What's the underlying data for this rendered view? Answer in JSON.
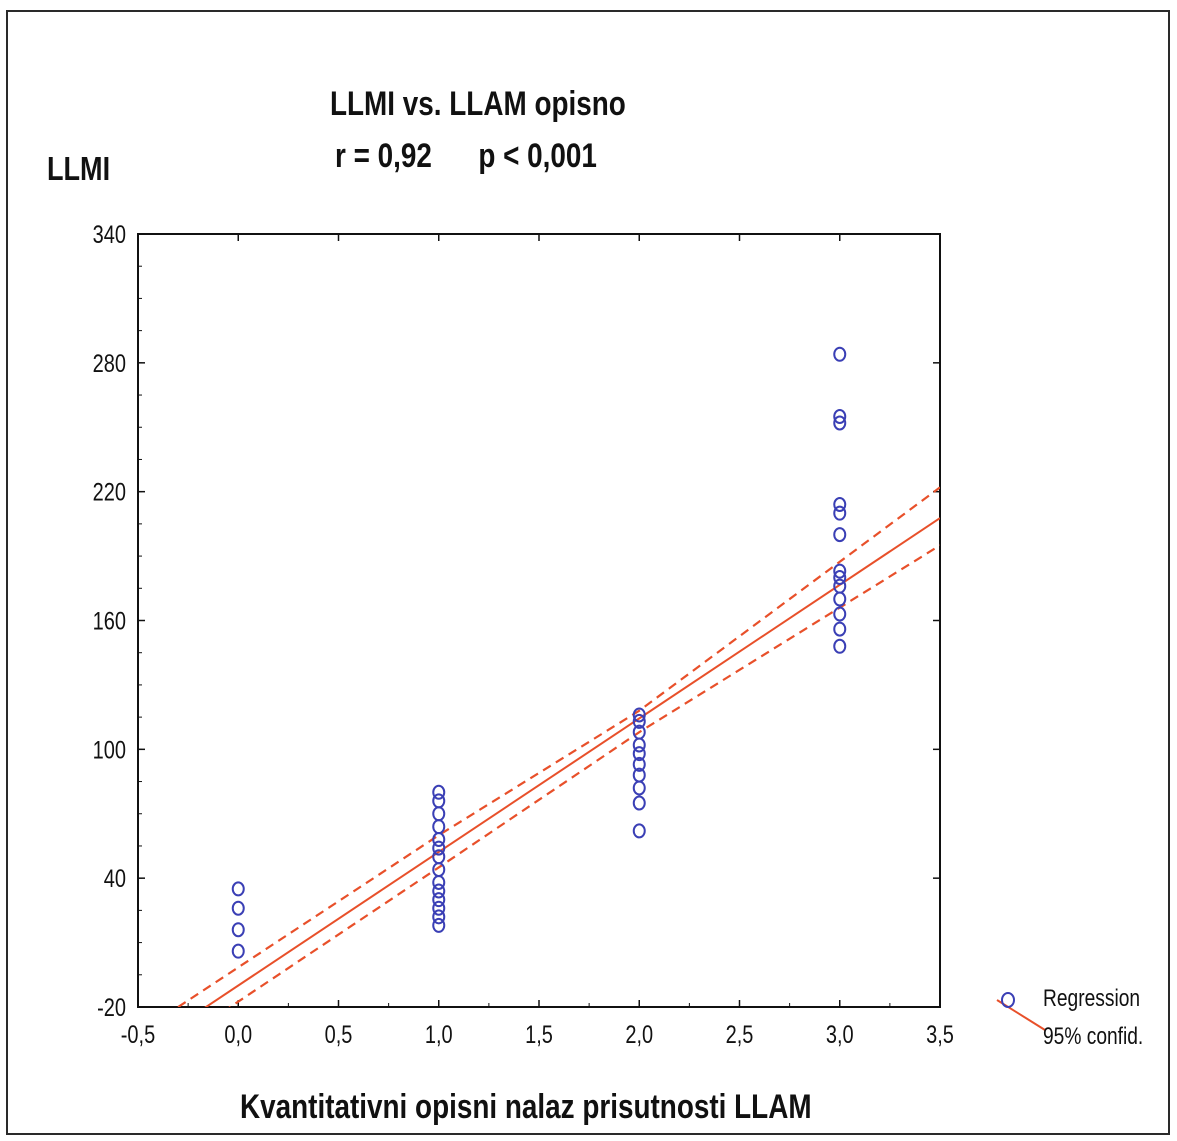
{
  "chart_data": {
    "type": "scatter",
    "title": "LLMI vs. LLAM opisno",
    "subtitle": "r = 0,92      p < 0,001",
    "xlabel": "Kvantitativni opisni nalaz prisutnosti LLAM",
    "ylabel": "LLMI",
    "xlim": [
      -0.5,
      3.5
    ],
    "ylim": [
      -20,
      340
    ],
    "x_ticks": [
      -0.5,
      0.0,
      0.5,
      1.0,
      1.5,
      2.0,
      2.5,
      3.0,
      3.5
    ],
    "x_tick_labels": [
      "-0,5",
      "0,0",
      "0,5",
      "1,0",
      "1,5",
      "2,0",
      "2,5",
      "3,0",
      "3,5"
    ],
    "y_ticks": [
      -20,
      40,
      100,
      160,
      220,
      280,
      340
    ],
    "y_tick_labels": [
      "-20",
      "40",
      "100",
      "160",
      "220",
      "280",
      "340"
    ],
    "grid": false,
    "legend_position": "right",
    "legend": [
      {
        "label": "Regression"
      },
      {
        "label": "95% confid."
      }
    ],
    "points": [
      {
        "x": 0,
        "y": 6
      },
      {
        "x": 0,
        "y": 16
      },
      {
        "x": 0,
        "y": 26
      },
      {
        "x": 0,
        "y": 35
      },
      {
        "x": 1,
        "y": 18
      },
      {
        "x": 1,
        "y": 22
      },
      {
        "x": 1,
        "y": 26
      },
      {
        "x": 1,
        "y": 30
      },
      {
        "x": 1,
        "y": 34
      },
      {
        "x": 1,
        "y": 38
      },
      {
        "x": 1,
        "y": 44
      },
      {
        "x": 1,
        "y": 50
      },
      {
        "x": 1,
        "y": 54
      },
      {
        "x": 1,
        "y": 58
      },
      {
        "x": 1,
        "y": 64
      },
      {
        "x": 1,
        "y": 70
      },
      {
        "x": 1,
        "y": 76
      },
      {
        "x": 1,
        "y": 80
      },
      {
        "x": 2,
        "y": 62
      },
      {
        "x": 2,
        "y": 75
      },
      {
        "x": 2,
        "y": 82
      },
      {
        "x": 2,
        "y": 88
      },
      {
        "x": 2,
        "y": 93
      },
      {
        "x": 2,
        "y": 98
      },
      {
        "x": 2,
        "y": 102
      },
      {
        "x": 2,
        "y": 108
      },
      {
        "x": 2,
        "y": 113
      },
      {
        "x": 2,
        "y": 116
      },
      {
        "x": 3,
        "y": 148
      },
      {
        "x": 3,
        "y": 156
      },
      {
        "x": 3,
        "y": 163
      },
      {
        "x": 3,
        "y": 170
      },
      {
        "x": 3,
        "y": 176
      },
      {
        "x": 3,
        "y": 180
      },
      {
        "x": 3,
        "y": 183
      },
      {
        "x": 3,
        "y": 200
      },
      {
        "x": 3,
        "y": 210
      },
      {
        "x": 3,
        "y": 214
      },
      {
        "x": 3,
        "y": 252
      },
      {
        "x": 3,
        "y": 255
      },
      {
        "x": 3,
        "y": 284
      }
    ],
    "regression": {
      "intercept": -10,
      "slope": 62.2
    },
    "confidence_band": {
      "lower": [
        {
          "x": -0.2,
          "y": -30
        },
        {
          "x": 1.0,
          "y": 45
        },
        {
          "x": 2.0,
          "y": 108
        },
        {
          "x": 3.5,
          "y": 195
        }
      ],
      "upper": [
        {
          "x": -0.3,
          "y": -20
        },
        {
          "x": 1.0,
          "y": 60
        },
        {
          "x": 2.0,
          "y": 118
        },
        {
          "x": 3.5,
          "y": 222
        }
      ]
    },
    "colors": {
      "points": "#3a3fb5",
      "regression": "#e8502a",
      "axes": "#111111"
    }
  }
}
